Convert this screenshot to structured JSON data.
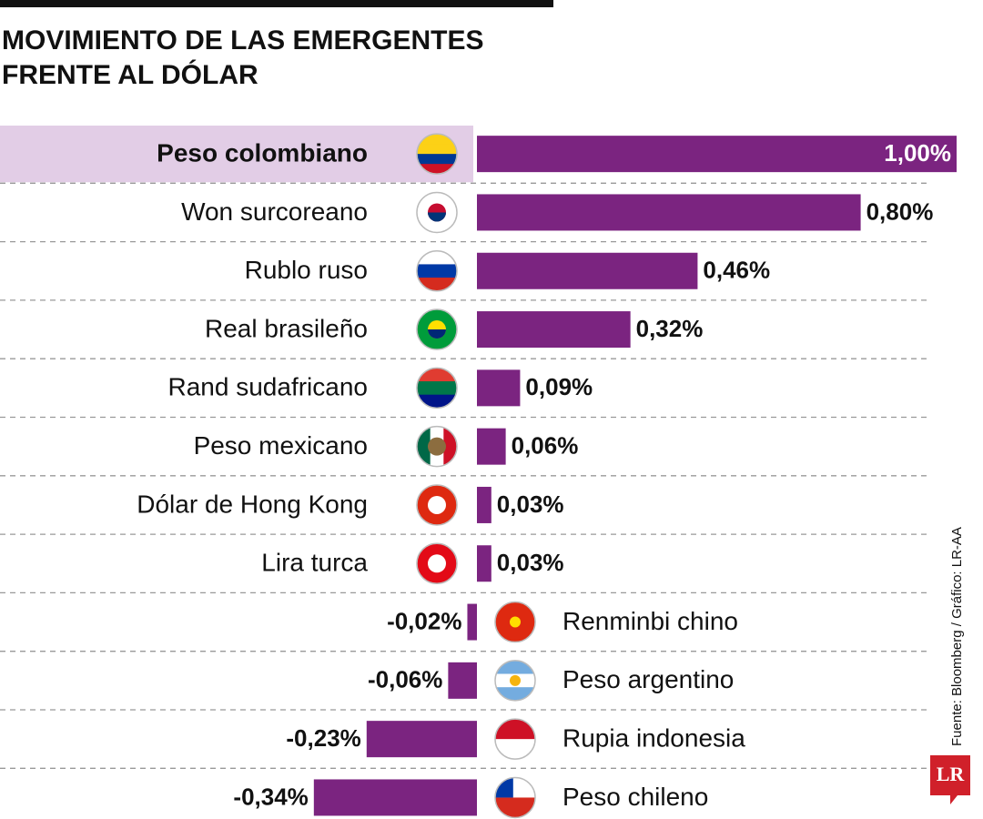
{
  "chart_data": {
    "type": "diverging-bar",
    "title": "MOVIMIENTO DE LAS EMERGENTES FRENTE AL DÓLAR",
    "categories": [
      "Peso colombiano",
      "Won surcoreano",
      "Rublo ruso",
      "Real brasileño",
      "Rand sudafricano",
      "Peso mexicano",
      "Dólar de Hong Kong",
      "Lira turca",
      "Renminbi chino",
      "Peso argentino",
      "Rupia indonesia",
      "Peso chileno"
    ],
    "values": [
      1.0,
      0.8,
      0.46,
      0.32,
      0.09,
      0.06,
      0.03,
      0.03,
      -0.02,
      -0.06,
      -0.23,
      -0.34
    ],
    "value_labels": [
      "1,00%",
      "0,80%",
      "0,46%",
      "0,32%",
      "0,09%",
      "0,06%",
      "0,03%",
      "0,03%",
      "-0,02%",
      "-0,06%",
      "-0,23%",
      "-0,34%"
    ],
    "color": "#7b2480",
    "highlight": 0,
    "source": "Fuente: Bloomberg / Gráfico: LR-AA",
    "logo": "LR"
  }
}
